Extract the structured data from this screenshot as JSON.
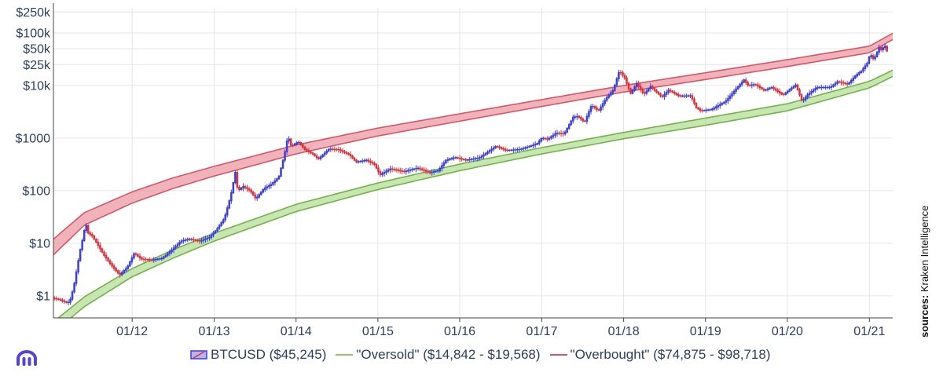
{
  "chart_data": {
    "type": "line",
    "yscale": "log",
    "ylim": [
      0.38,
      300000
    ],
    "xlim": [
      "2011-01-15",
      "2021-04-15"
    ],
    "grid": true,
    "y_ticks": [
      {
        "value": 250000,
        "label": "$250k"
      },
      {
        "value": 100000,
        "label": "$100k"
      },
      {
        "value": 50000,
        "label": "$50k"
      },
      {
        "value": 25000,
        "label": "$25k"
      },
      {
        "value": 10000,
        "label": "$10k"
      },
      {
        "value": 1000,
        "label": "$1000"
      },
      {
        "value": 100,
        "label": "$100"
      },
      {
        "value": 10,
        "label": "$10"
      },
      {
        "value": 1,
        "label": "$1"
      }
    ],
    "x_ticks": [
      {
        "value": "2012-01-01",
        "label": "01/12"
      },
      {
        "value": "2013-01-01",
        "label": "01/13"
      },
      {
        "value": "2014-01-01",
        "label": "01/14"
      },
      {
        "value": "2015-01-01",
        "label": "01/15"
      },
      {
        "value": "2016-01-01",
        "label": "01/16"
      },
      {
        "value": "2017-01-01",
        "label": "01/17"
      },
      {
        "value": "2018-01-01",
        "label": "01/18"
      },
      {
        "value": "2019-01-01",
        "label": "01/19"
      },
      {
        "value": "2020-01-01",
        "label": "01/20"
      },
      {
        "value": "2021-01-01",
        "label": "01/21"
      }
    ],
    "series": [
      {
        "name": "BTCUSD ($45,245)",
        "kind": "price",
        "color_up": "#3b3fd8",
        "color_down": "#d9323c",
        "points": [
          [
            "2011-01-15",
            0.9
          ],
          [
            "2011-02-15",
            0.85
          ],
          [
            "2011-03-15",
            0.75
          ],
          [
            "2011-04-01",
            0.75
          ],
          [
            "2011-04-20",
            1.5
          ],
          [
            "2011-05-05",
            3.5
          ],
          [
            "2011-05-20",
            8
          ],
          [
            "2011-06-05",
            16
          ],
          [
            "2011-06-10",
            28
          ],
          [
            "2011-06-20",
            16
          ],
          [
            "2011-07-10",
            14
          ],
          [
            "2011-08-01",
            10
          ],
          [
            "2011-09-01",
            6
          ],
          [
            "2011-10-01",
            4
          ],
          [
            "2011-11-10",
            2.5
          ],
          [
            "2011-12-15",
            3.5
          ],
          [
            "2012-01-15",
            6.5
          ],
          [
            "2012-02-15",
            5
          ],
          [
            "2012-04-01",
            4.8
          ],
          [
            "2012-05-15",
            5.1
          ],
          [
            "2012-06-15",
            6.5
          ],
          [
            "2012-08-10",
            11
          ],
          [
            "2012-09-15",
            12
          ],
          [
            "2012-11-01",
            11
          ],
          [
            "2012-12-15",
            13
          ],
          [
            "2013-01-15",
            18
          ],
          [
            "2013-02-20",
            30
          ],
          [
            "2013-03-20",
            80
          ],
          [
            "2013-04-10",
            230
          ],
          [
            "2013-04-20",
            100
          ],
          [
            "2013-05-15",
            120
          ],
          [
            "2013-06-15",
            100
          ],
          [
            "2013-07-10",
            70
          ],
          [
            "2013-08-15",
            110
          ],
          [
            "2013-09-15",
            130
          ],
          [
            "2013-10-20",
            180
          ],
          [
            "2013-11-15",
            500
          ],
          [
            "2013-11-30",
            1100
          ],
          [
            "2013-12-15",
            700
          ],
          [
            "2014-01-15",
            850
          ],
          [
            "2014-02-15",
            600
          ],
          [
            "2014-03-20",
            500
          ],
          [
            "2014-04-15",
            400
          ],
          [
            "2014-06-01",
            620
          ],
          [
            "2014-07-15",
            600
          ],
          [
            "2014-09-01",
            480
          ],
          [
            "2014-10-01",
            350
          ],
          [
            "2014-11-15",
            380
          ],
          [
            "2014-12-20",
            320
          ],
          [
            "2015-01-15",
            200
          ],
          [
            "2015-03-01",
            260
          ],
          [
            "2015-05-01",
            230
          ],
          [
            "2015-07-01",
            270
          ],
          [
            "2015-08-25",
            220
          ],
          [
            "2015-10-01",
            240
          ],
          [
            "2015-11-05",
            380
          ],
          [
            "2015-12-15",
            430
          ],
          [
            "2016-02-01",
            380
          ],
          [
            "2016-04-01",
            420
          ],
          [
            "2016-06-15",
            700
          ],
          [
            "2016-08-01",
            580
          ],
          [
            "2016-10-01",
            610
          ],
          [
            "2016-12-15",
            780
          ],
          [
            "2017-01-05",
            1000
          ],
          [
            "2017-02-01",
            950
          ],
          [
            "2017-03-10",
            1250
          ],
          [
            "2017-04-15",
            1200
          ],
          [
            "2017-05-25",
            2500
          ],
          [
            "2017-06-15",
            2600
          ],
          [
            "2017-07-15",
            2000
          ],
          [
            "2017-08-15",
            4200
          ],
          [
            "2017-09-15",
            3300
          ],
          [
            "2017-10-20",
            5800
          ],
          [
            "2017-11-20",
            8200
          ],
          [
            "2017-12-17",
            19000
          ],
          [
            "2018-01-10",
            14000
          ],
          [
            "2018-02-05",
            7000
          ],
          [
            "2018-03-05",
            11000
          ],
          [
            "2018-04-05",
            6800
          ],
          [
            "2018-05-05",
            9600
          ],
          [
            "2018-06-25",
            6000
          ],
          [
            "2018-07-25",
            8200
          ],
          [
            "2018-09-10",
            6300
          ],
          [
            "2018-11-01",
            6400
          ],
          [
            "2018-11-25",
            3800
          ],
          [
            "2018-12-15",
            3300
          ],
          [
            "2019-02-01",
            3500
          ],
          [
            "2019-04-05",
            5000
          ],
          [
            "2019-05-15",
            8000
          ],
          [
            "2019-06-26",
            12800
          ],
          [
            "2019-07-15",
            10000
          ],
          [
            "2019-08-15",
            10500
          ],
          [
            "2019-09-25",
            8000
          ],
          [
            "2019-10-26",
            9300
          ],
          [
            "2019-12-17",
            6600
          ],
          [
            "2020-01-20",
            8700
          ],
          [
            "2020-02-12",
            10300
          ],
          [
            "2020-03-12",
            4900
          ],
          [
            "2020-04-01",
            6500
          ],
          [
            "2020-05-15",
            9200
          ],
          [
            "2020-07-15",
            9200
          ],
          [
            "2020-08-15",
            11800
          ],
          [
            "2020-10-01",
            10600
          ],
          [
            "2020-11-05",
            15500
          ],
          [
            "2020-12-01",
            19000
          ],
          [
            "2020-12-28",
            27000
          ],
          [
            "2021-01-08",
            40000
          ],
          [
            "2021-01-25",
            31000
          ],
          [
            "2021-02-20",
            56000
          ],
          [
            "2021-03-01",
            45000
          ],
          [
            "2021-03-13",
            60000
          ],
          [
            "2021-03-25",
            45245
          ]
        ]
      },
      {
        "name": "\"Oversold\" ($14,842 - $19,568)",
        "kind": "band",
        "color": "#6fb544",
        "fill": "#b5dc9a",
        "lower": [
          [
            "2011-01-15",
            0.2
          ],
          [
            "2011-06-01",
            0.62
          ],
          [
            "2012-01-01",
            2.3
          ],
          [
            "2012-07-01",
            5.2
          ],
          [
            "2013-01-01",
            11
          ],
          [
            "2014-01-01",
            40
          ],
          [
            "2015-01-01",
            105
          ],
          [
            "2016-01-01",
            240
          ],
          [
            "2017-01-01",
            500
          ],
          [
            "2018-01-01",
            970
          ],
          [
            "2019-01-01",
            1750
          ],
          [
            "2020-01-01",
            3300
          ],
          [
            "2021-01-01",
            9000
          ],
          [
            "2021-04-15",
            14842
          ]
        ],
        "upper": [
          [
            "2011-01-15",
            0.32
          ],
          [
            "2011-06-01",
            0.95
          ],
          [
            "2012-01-01",
            3.3
          ],
          [
            "2012-07-01",
            7.5
          ],
          [
            "2013-01-01",
            15.5
          ],
          [
            "2014-01-01",
            55
          ],
          [
            "2015-01-01",
            140
          ],
          [
            "2016-01-01",
            320
          ],
          [
            "2017-01-01",
            660
          ],
          [
            "2018-01-01",
            1280
          ],
          [
            "2019-01-01",
            2400
          ],
          [
            "2020-01-01",
            4500
          ],
          [
            "2021-01-01",
            12000
          ],
          [
            "2021-04-15",
            19568
          ]
        ]
      },
      {
        "name": "\"Overbought\" ($74,875 - $98,718)",
        "kind": "band",
        "color": "#d85664",
        "fill": "#eb9aa4",
        "lower": [
          [
            "2011-01-15",
            6
          ],
          [
            "2011-06-01",
            22
          ],
          [
            "2012-01-01",
            58
          ],
          [
            "2012-07-01",
            110
          ],
          [
            "2013-01-01",
            190
          ],
          [
            "2014-01-01",
            500
          ],
          [
            "2015-01-01",
            1100
          ],
          [
            "2016-01-01",
            2100
          ],
          [
            "2017-01-01",
            4000
          ],
          [
            "2018-01-01",
            7500
          ],
          [
            "2019-01-01",
            13000
          ],
          [
            "2020-01-01",
            23000
          ],
          [
            "2021-01-01",
            42000
          ],
          [
            "2021-04-15",
            74875
          ]
        ],
        "upper": [
          [
            "2011-01-15",
            12
          ],
          [
            "2011-06-01",
            38
          ],
          [
            "2012-01-01",
            95
          ],
          [
            "2012-07-01",
            175
          ],
          [
            "2013-01-01",
            290
          ],
          [
            "2014-01-01",
            740
          ],
          [
            "2015-01-01",
            1550
          ],
          [
            "2016-01-01",
            2900
          ],
          [
            "2017-01-01",
            5400
          ],
          [
            "2018-01-01",
            10000
          ],
          [
            "2019-01-01",
            17500
          ],
          [
            "2020-01-01",
            31000
          ],
          [
            "2021-01-01",
            56000
          ],
          [
            "2021-04-15",
            98718
          ]
        ]
      }
    ],
    "legend_position": "bottom"
  },
  "source": {
    "label": "sources:",
    "value": "Kraken Intelligence"
  },
  "logo": {
    "icon": "kraken-logo-icon",
    "color": "#5741d9"
  }
}
